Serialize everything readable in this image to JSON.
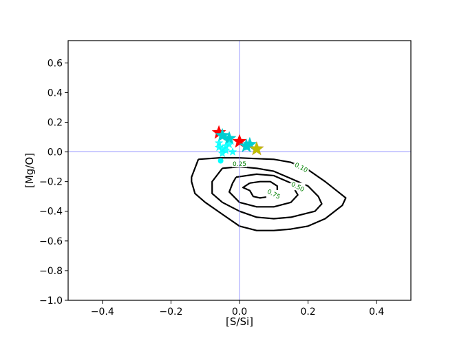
{
  "chart_data": {
    "type": "scatter",
    "xlabel": "[S/Si]",
    "ylabel": "[Mg/O]",
    "xlim": [
      -0.5,
      0.5
    ],
    "ylim": [
      -1.0,
      0.75
    ],
    "x_ticks": [
      -0.4,
      -0.2,
      0.0,
      0.2,
      0.4
    ],
    "x_tick_labels": [
      "−0.4",
      "−0.2",
      "0.0",
      "0.2",
      "0.4"
    ],
    "y_ticks": [
      0.6,
      0.4,
      0.2,
      0.0,
      -0.2,
      -0.4,
      -0.6,
      -0.8,
      -1.0
    ],
    "y_tick_labels": [
      "0.6",
      "0.4",
      "0.2",
      "0.0",
      "−0.2",
      "−0.4",
      "−0.6",
      "−0.8",
      "−1.0"
    ],
    "reference_lines": {
      "x": 0.0,
      "y": 0.0,
      "color": "#7f7fff"
    },
    "contours": [
      {
        "level": "0.10",
        "label_at": [
          0.18,
          -0.105
        ],
        "points": [
          [
            -0.12,
            -0.05
          ],
          [
            -0.06,
            -0.04
          ],
          [
            0.0,
            -0.04
          ],
          [
            0.05,
            -0.045
          ],
          [
            0.1,
            -0.05
          ],
          [
            0.15,
            -0.07
          ],
          [
            0.2,
            -0.12
          ],
          [
            0.25,
            -0.2
          ],
          [
            0.31,
            -0.31
          ],
          [
            0.3,
            -0.36
          ],
          [
            0.25,
            -0.45
          ],
          [
            0.2,
            -0.5
          ],
          [
            0.15,
            -0.52
          ],
          [
            0.1,
            -0.53
          ],
          [
            0.05,
            -0.53
          ],
          [
            0.0,
            -0.5
          ],
          [
            -0.05,
            -0.42
          ],
          [
            -0.1,
            -0.34
          ],
          [
            -0.13,
            -0.28
          ],
          [
            -0.14,
            -0.2
          ],
          [
            -0.14,
            -0.17
          ],
          [
            -0.12,
            -0.05
          ]
        ]
      },
      {
        "level": "0.25",
        "label_at": [
          0.0,
          -0.08
        ],
        "points": [
          [
            -0.05,
            -0.11
          ],
          [
            0.0,
            -0.1
          ],
          [
            0.05,
            -0.11
          ],
          [
            0.1,
            -0.13
          ],
          [
            0.15,
            -0.18
          ],
          [
            0.2,
            -0.23
          ],
          [
            0.23,
            -0.3
          ],
          [
            0.24,
            -0.35
          ],
          [
            0.22,
            -0.4
          ],
          [
            0.15,
            -0.44
          ],
          [
            0.1,
            -0.45
          ],
          [
            0.05,
            -0.44
          ],
          [
            0.0,
            -0.4
          ],
          [
            -0.05,
            -0.34
          ],
          [
            -0.08,
            -0.28
          ],
          [
            -0.08,
            -0.2
          ],
          [
            -0.05,
            -0.11
          ]
        ]
      },
      {
        "level": "0.50",
        "label_at": [
          0.17,
          -0.235
        ],
        "points": [
          [
            -0.01,
            -0.17
          ],
          [
            0.05,
            -0.15
          ],
          [
            0.1,
            -0.16
          ],
          [
            0.15,
            -0.21
          ],
          [
            0.17,
            -0.29
          ],
          [
            0.15,
            -0.34
          ],
          [
            0.1,
            -0.37
          ],
          [
            0.05,
            -0.37
          ],
          [
            0.0,
            -0.34
          ],
          [
            -0.03,
            -0.27
          ],
          [
            -0.02,
            -0.21
          ],
          [
            -0.01,
            -0.17
          ]
        ]
      },
      {
        "level": "0.75",
        "label_at": [
          0.1,
          -0.285
        ],
        "points": [
          [
            0.03,
            -0.21
          ],
          [
            0.06,
            -0.2
          ],
          [
            0.09,
            -0.2
          ],
          [
            0.11,
            -0.23
          ],
          [
            0.11,
            -0.27
          ],
          [
            0.09,
            -0.3
          ],
          [
            0.06,
            -0.31
          ],
          [
            0.04,
            -0.3
          ],
          [
            0.03,
            -0.26
          ],
          [
            0.01,
            -0.24
          ],
          [
            0.03,
            -0.21
          ]
        ]
      }
    ],
    "series": [
      {
        "marker": "star",
        "color": "#ff0000",
        "size": "large",
        "points": [
          [
            -0.06,
            0.13
          ],
          [
            0.0,
            0.07
          ]
        ]
      },
      {
        "marker": "star",
        "color": "#00ced1",
        "size": "large",
        "points": [
          [
            -0.05,
            0.11
          ],
          [
            -0.03,
            0.09
          ],
          [
            0.02,
            0.04
          ],
          [
            0.03,
            0.05
          ]
        ]
      },
      {
        "marker": "star",
        "color": "#bf00bf",
        "size": "large",
        "points": [
          [
            0.05,
            0.02
          ]
        ]
      },
      {
        "marker": "star",
        "color": "#bfbf00",
        "size": "large",
        "points": [
          [
            0.05,
            0.02
          ]
        ]
      },
      {
        "marker": "star",
        "color": "#00ffff",
        "size": "small",
        "points": [
          [
            -0.06,
            0.03
          ],
          [
            -0.05,
            0.02
          ],
          [
            -0.04,
            0.04
          ],
          [
            -0.06,
            0.06
          ],
          [
            -0.03,
            0.05
          ],
          [
            -0.02,
            0.0
          ],
          [
            -0.05,
            -0.01
          ],
          [
            -0.04,
            0.01
          ]
        ]
      },
      {
        "marker": "dot",
        "color": "#00ffff",
        "size": "small",
        "points": [
          [
            -0.055,
            -0.06
          ]
        ]
      }
    ]
  }
}
